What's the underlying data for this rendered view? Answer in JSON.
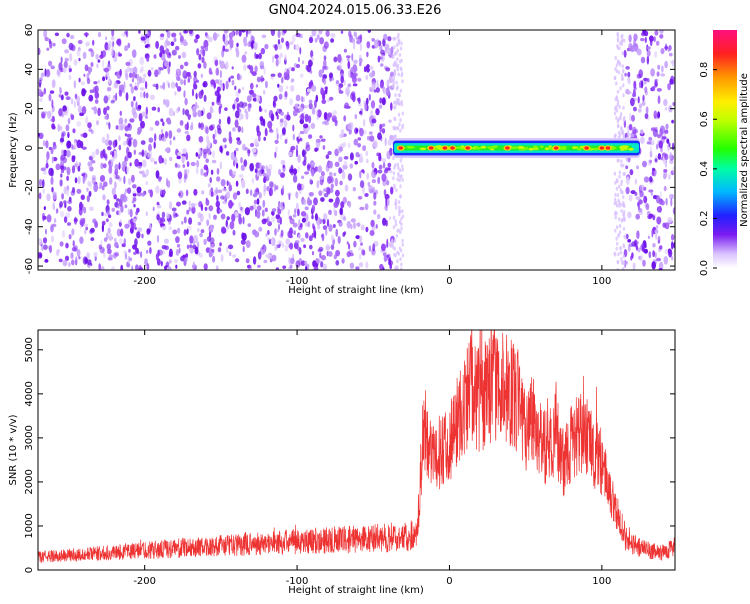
{
  "title": "GN04.2024.015.06.33.E26",
  "colors": {
    "snr_line": "#ee3333",
    "spectrogram_noise": "#7a1cf0",
    "axis": "#000000"
  },
  "chart_data": [
    {
      "type": "heatmap",
      "name": "spectrogram",
      "xlabel": "Height of straight line (km)",
      "ylabel": "Frequency (Hz)",
      "xlim": [
        -270,
        148
      ],
      "ylim": [
        -62,
        60
      ],
      "x_ticks": [
        -200,
        -100,
        0,
        100
      ],
      "y_ticks": [
        -60,
        -40,
        -20,
        0,
        20,
        40,
        60
      ],
      "colormap": "rainbow",
      "noise_regions": [
        [
          -270,
          -37
        ],
        [
          115,
          148
        ]
      ],
      "signal_band": {
        "x_start": -37,
        "x_end": 125,
        "freq_center": 0,
        "freq_halfwidth": 3
      },
      "hot_spots_x": [
        -32,
        -12,
        -3,
        2,
        12,
        38,
        70,
        90,
        100,
        104
      ],
      "colorbar": {
        "label": "Normalized spectral amplitude",
        "ticks": [
          0.0,
          0.2,
          0.4,
          0.6,
          0.8
        ],
        "range": [
          0,
          0.96
        ]
      }
    },
    {
      "type": "line",
      "name": "snr",
      "xlabel": "Height of straight line (km)",
      "ylabel": "SNR (10 * v/v)",
      "xlim": [
        -270,
        148
      ],
      "ylim": [
        0,
        5450
      ],
      "x_ticks": [
        -200,
        -100,
        0,
        100
      ],
      "y_ticks": [
        0,
        1000,
        2000,
        3000,
        4000,
        5000
      ],
      "series": [
        {
          "x": [
            -270,
            -240,
            -200,
            -150,
            -100,
            -60,
            -30,
            -22,
            -20,
            -18,
            -15,
            -10,
            -5,
            0,
            5,
            10,
            14,
            20,
            25,
            30,
            35,
            40,
            45,
            50,
            55,
            60,
            65,
            70,
            75,
            80,
            85,
            90,
            95,
            100,
            105,
            110,
            115,
            120,
            125,
            130,
            140,
            148
          ],
          "y": [
            300,
            350,
            450,
            550,
            650,
            700,
            750,
            800,
            1400,
            2800,
            3200,
            2400,
            2800,
            2900,
            3400,
            3700,
            4200,
            3800,
            4200,
            4300,
            4200,
            4000,
            3800,
            3300,
            3500,
            3000,
            2700,
            3100,
            2400,
            2900,
            3100,
            3000,
            2700,
            2400,
            1800,
            1300,
            800,
            600,
            500,
            450,
            400,
            550
          ]
        }
      ]
    }
  ]
}
